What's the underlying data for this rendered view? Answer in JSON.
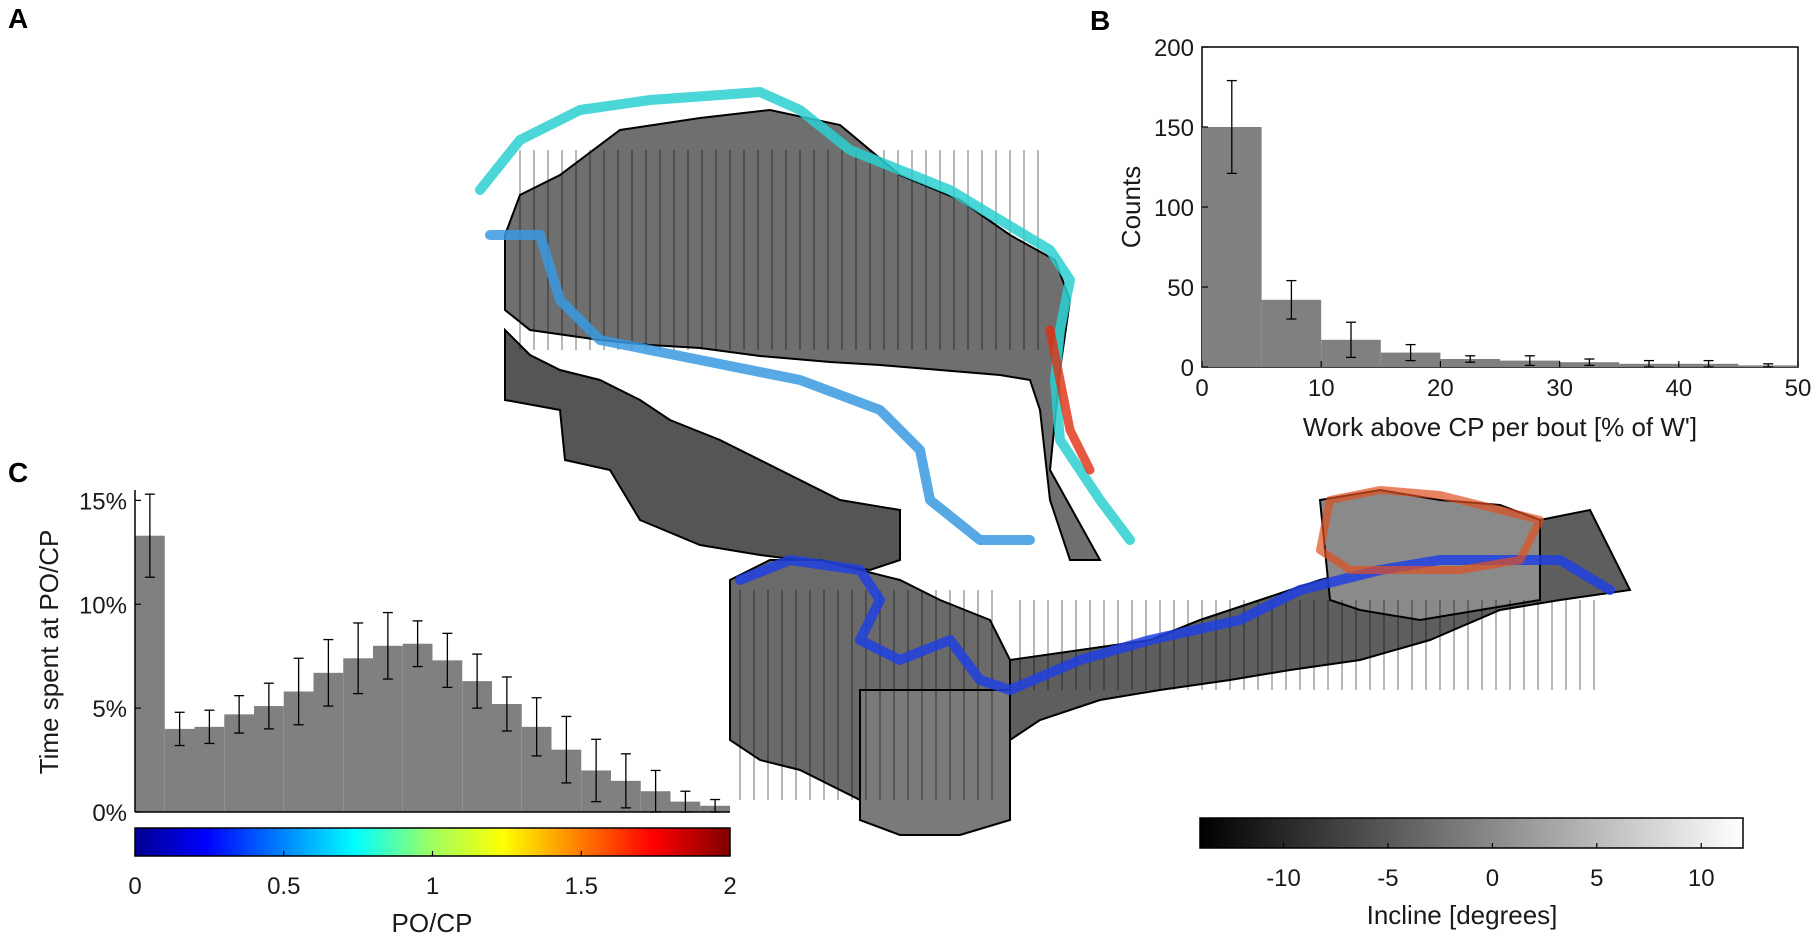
{
  "panels": {
    "a": "A",
    "b": "B",
    "c": "C"
  },
  "colors": {
    "bar": "#808080",
    "axis": "#000000",
    "track_hot": "#e03010",
    "track_cold": "#1e1ee0"
  },
  "chart_data": [
    {
      "panel": "A",
      "type": "other",
      "description_only": true
    },
    {
      "panel": "B",
      "type": "bar",
      "xlabel": "Work above CP per bout [% of W']",
      "ylabel": "Counts",
      "xlim": [
        0,
        50
      ],
      "ylim": [
        0,
        200
      ],
      "xticks": [
        0,
        10,
        20,
        30,
        40,
        50
      ],
      "yticks": [
        0,
        50,
        100,
        150,
        200
      ],
      "bin_width": 5,
      "bin_starts": [
        0,
        5,
        10,
        15,
        20,
        25,
        30,
        35,
        40,
        45
      ],
      "values": [
        150,
        42,
        17,
        9,
        5,
        4,
        3,
        2,
        2,
        1
      ],
      "error": [
        29,
        12,
        11,
        5,
        2,
        3,
        2,
        2,
        2,
        1
      ]
    },
    {
      "panel": "C",
      "type": "bar",
      "xlabel": "PO/CP",
      "ylabel": "Time spent at PO/CP",
      "xlim": [
        0,
        2
      ],
      "ylim": [
        0,
        15.5
      ],
      "xticks": [
        0,
        0.5,
        1,
        1.5,
        2
      ],
      "yticks": [
        0,
        5,
        10,
        15
      ],
      "ytick_labels": [
        "0%",
        "5%",
        "10%",
        "15%"
      ],
      "bin_width": 0.1,
      "bin_starts": [
        0,
        0.1,
        0.2,
        0.3,
        0.4,
        0.5,
        0.6,
        0.7,
        0.8,
        0.9,
        1.0,
        1.1,
        1.2,
        1.3,
        1.4,
        1.5,
        1.6,
        1.7,
        1.8,
        1.9
      ],
      "values": [
        13.3,
        4.0,
        4.1,
        4.7,
        5.1,
        5.8,
        6.7,
        7.4,
        8.0,
        8.1,
        7.3,
        6.3,
        5.2,
        4.1,
        3.0,
        2.0,
        1.5,
        1.0,
        0.5,
        0.3
      ],
      "error": [
        2.0,
        0.8,
        0.8,
        0.9,
        1.1,
        1.6,
        1.6,
        1.7,
        1.6,
        1.1,
        1.3,
        1.3,
        1.3,
        1.4,
        1.6,
        1.5,
        1.3,
        1.0,
        0.5,
        0.3
      ],
      "colorbar": {
        "min": 0,
        "max": 2,
        "ticks": [
          0,
          0.5,
          1,
          1.5,
          2
        ],
        "tick_labels": [
          "0",
          "0.5",
          "1",
          "1.5",
          "2"
        ],
        "colormap": "jet",
        "label": "PO/CP"
      }
    },
    {
      "panel": "A-colorbar",
      "type": "colorbar",
      "label": "Incline [degrees]",
      "min": -14,
      "max": 12,
      "ticks": [
        -10,
        -5,
        0,
        5,
        10
      ],
      "tick_labels": [
        "-10",
        "-5",
        "0",
        "5",
        "10"
      ],
      "colormap": "gray"
    }
  ]
}
